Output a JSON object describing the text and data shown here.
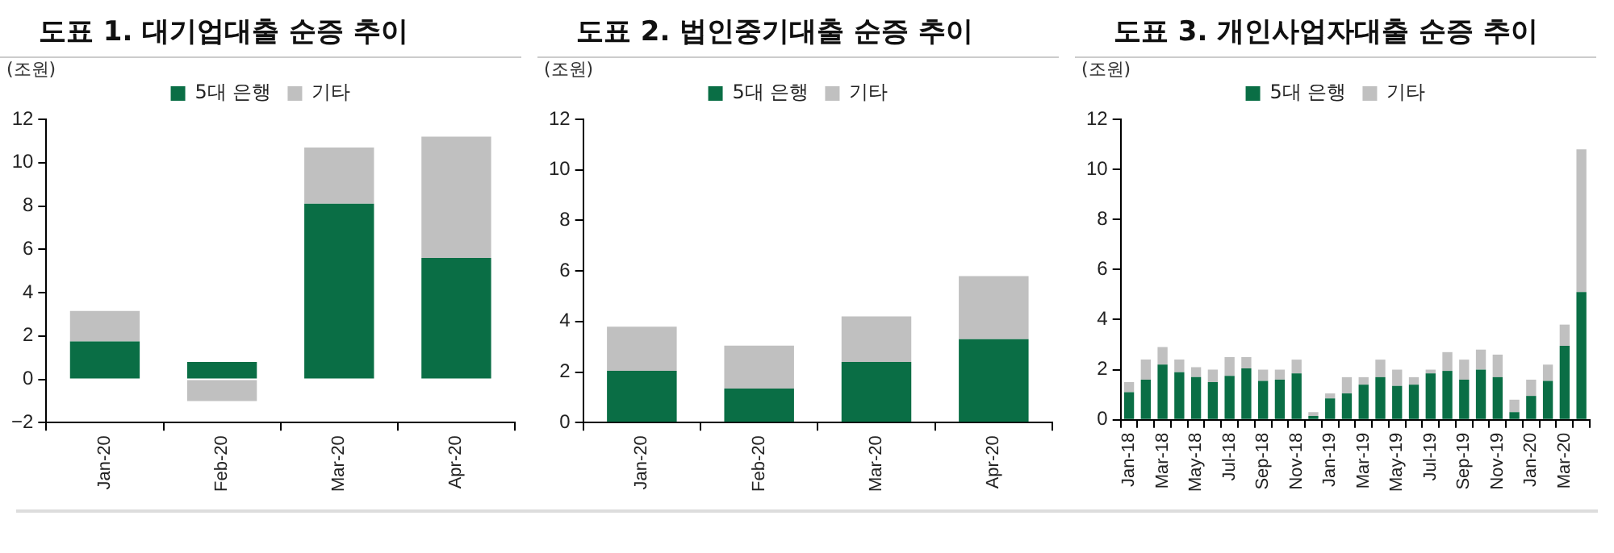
{
  "chart_data": [
    {
      "type": "bar",
      "title": "도표 1. 대기업대출 순증 추이",
      "ylabel": "(조원)",
      "stacked": true,
      "legend": "top",
      "grid": false,
      "categories": [
        "Jan-20",
        "Feb-20",
        "Mar-20",
        "Apr-20"
      ],
      "ylim": [
        -2,
        12
      ],
      "yticks": [
        {
          "value": -2,
          "label": "−2"
        },
        0,
        2,
        4,
        6,
        8,
        10,
        12
      ],
      "series": [
        {
          "name": "5대 은행",
          "color": "#0a6e45",
          "values": [
            1.75,
            0.8,
            8.1,
            5.6
          ]
        },
        {
          "name": "기타",
          "color": "#c0c0c0",
          "values": [
            1.4,
            -1.0,
            2.6,
            5.6
          ]
        }
      ]
    },
    {
      "type": "bar",
      "title": "도표 2. 법인중기대출 순증 추이",
      "ylabel": "(조원)",
      "stacked": true,
      "legend": "top",
      "grid": false,
      "categories": [
        "Jan-20",
        "Feb-20",
        "Mar-20",
        "Apr-20"
      ],
      "ylim": [
        0,
        12
      ],
      "yticks": [
        0,
        2,
        4,
        6,
        8,
        10,
        12
      ],
      "series": [
        {
          "name": "5대 은행",
          "color": "#0a6e45",
          "values": [
            2.05,
            1.35,
            2.4,
            3.3
          ]
        },
        {
          "name": "기타",
          "color": "#c0c0c0",
          "values": [
            1.75,
            1.7,
            1.8,
            2.5
          ]
        }
      ]
    },
    {
      "type": "bar",
      "title": "도표 3. 개인사업자대출 순증 추이",
      "ylabel": "(조원)",
      "stacked": true,
      "legend": "top",
      "grid": false,
      "categories": [
        "Jan-18",
        null,
        "Mar-18",
        null,
        "May-18",
        null,
        "Jul-18",
        null,
        "Sep-18",
        null,
        "Nov-18",
        null,
        "Jan-19",
        null,
        "Mar-19",
        null,
        "May-19",
        null,
        "Jul-19",
        null,
        "Sep-19",
        null,
        "Nov-19",
        null,
        "Jan-20",
        null,
        "Mar-20",
        null
      ],
      "ylim": [
        0,
        12
      ],
      "yticks": [
        0,
        2,
        4,
        6,
        8,
        10,
        12
      ],
      "series": [
        {
          "name": "5대 은행",
          "color": "#0a6e45",
          "values": [
            1.1,
            1.6,
            2.2,
            1.9,
            1.7,
            1.5,
            1.75,
            2.05,
            1.55,
            1.6,
            1.85,
            0.15,
            0.85,
            1.05,
            1.4,
            1.7,
            1.35,
            1.4,
            1.85,
            1.95,
            1.6,
            2.0,
            1.7,
            0.3,
            0.95,
            1.55,
            2.95,
            5.1
          ]
        },
        {
          "name": "기타",
          "color": "#c0c0c0",
          "values": [
            0.4,
            0.8,
            0.7,
            0.5,
            0.4,
            0.5,
            0.75,
            0.45,
            0.45,
            0.4,
            0.55,
            0.15,
            0.2,
            0.65,
            0.3,
            0.7,
            0.65,
            0.3,
            0.15,
            0.75,
            0.8,
            0.8,
            0.9,
            0.5,
            0.65,
            0.65,
            0.85,
            5.7
          ]
        }
      ]
    }
  ]
}
